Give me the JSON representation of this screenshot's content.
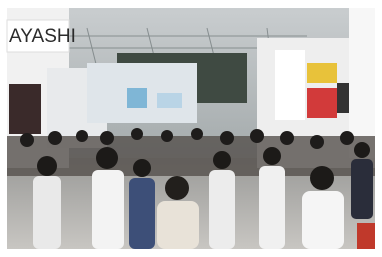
{
  "sign": {
    "text": "AYASHI"
  }
}
